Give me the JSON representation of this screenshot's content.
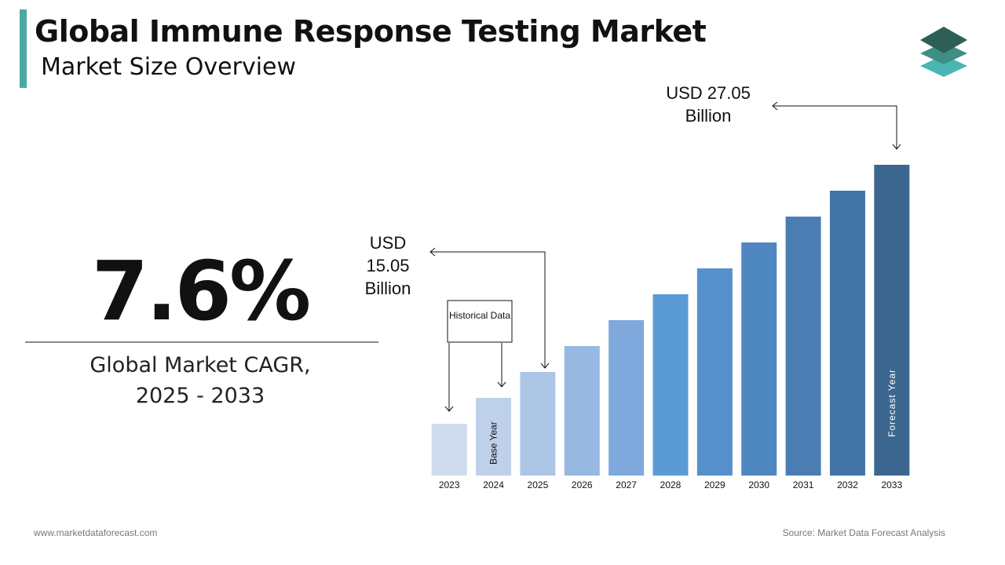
{
  "header": {
    "title": "Global Immune Response Testing Market",
    "subtitle": "Market Size Overview"
  },
  "cagr": {
    "value": "7.6%",
    "label": "Global Market CAGR, 2025 - 2033"
  },
  "chart_data": {
    "type": "bar",
    "categories": [
      "2023",
      "2024",
      "2025",
      "2026",
      "2027",
      "2028",
      "2029",
      "2030",
      "2031",
      "2032",
      "2033"
    ],
    "values": [
      12.05,
      13.55,
      15.05,
      16.55,
      18.05,
      19.55,
      21.05,
      22.55,
      24.05,
      25.55,
      27.05
    ],
    "colors": [
      "#cfdcee",
      "#bed0ea",
      "#adc6e6",
      "#97b8e0",
      "#7fa9dc",
      "#5b9bd5",
      "#5590cc",
      "#4f87c0",
      "#4a7eb3",
      "#4374a6",
      "#3c6690"
    ],
    "ylim": [
      9.05,
      27.05
    ],
    "annotations": {
      "start": "USD 15.05 Billion",
      "end": "USD 27.05 Billion",
      "historical": "Historical Data",
      "base_year": "Base Year",
      "forecast_year": "Forecast Year"
    }
  },
  "footer": {
    "website": "www.marketdataforecast.com",
    "source": "Source: Market Data Forecast Analysis"
  }
}
